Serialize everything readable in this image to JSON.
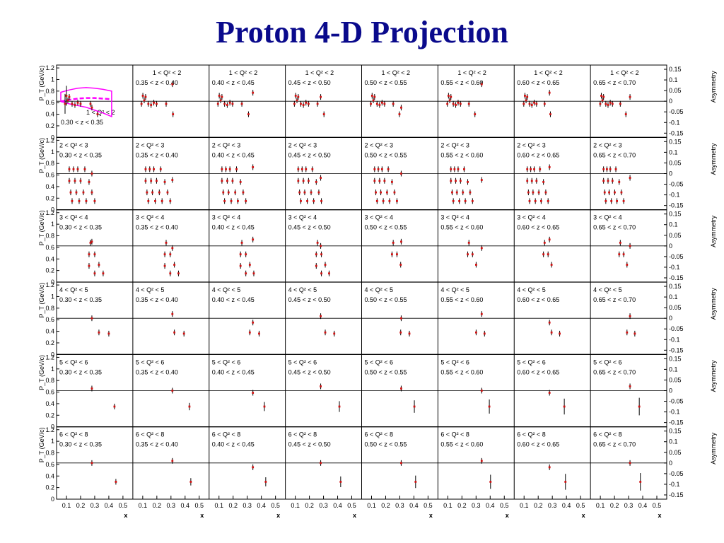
{
  "title": "Proton 4-D Projection",
  "chart_data": {
    "type": "scatter",
    "title": "Proton 4-D Projection",
    "xlabel": "x",
    "ylabel_left": "P_T (GeV/c)",
    "ylabel_right": "Asymmetry",
    "x_ticks": [
      "0.1",
      "0.2",
      "0.3",
      "0.4",
      "0.5"
    ],
    "xlim": [
      0.05,
      0.55
    ],
    "pt_ticks": [
      "0",
      "0.2",
      "0.4",
      "0.6",
      "0.8",
      "1",
      "1.2"
    ],
    "pt_lim": [
      0,
      1.25
    ],
    "asym_ticks": [
      "0.15",
      "0.1",
      "0.05",
      "0",
      "-0.05",
      "-0.1",
      "-0.15"
    ],
    "asym_lim": [
      -0.17,
      0.17
    ],
    "q2_bins": [
      "1 < Q² < 2",
      "2 < Q² < 3",
      "3 < Q² < 4",
      "4 < Q² < 5",
      "5 < Q² < 6",
      "6 < Q² < 8"
    ],
    "z_bins": [
      "0.30 < z < 0.35",
      "0.35 < z < 0.40",
      "0.40 < z < 0.45",
      "0.45 < z < 0.50",
      "0.50 < z < 0.55",
      "0.55 < z < 0.60",
      "0.60 < z < 0.65",
      "0.65 < z < 0.70"
    ],
    "row_points": [
      [
        [
          0.09,
          0.58
        ],
        [
          0.1,
          0.72
        ],
        [
          0.11,
          0.64
        ],
        [
          0.12,
          0.7
        ],
        [
          0.14,
          0.58
        ],
        [
          0.16,
          0.56
        ],
        [
          0.18,
          0.6
        ],
        [
          0.2,
          0.58
        ],
        [
          0.27,
          0.58
        ],
        [
          0.32,
          0.4
        ]
      ],
      [
        [
          0.12,
          0.7
        ],
        [
          0.15,
          0.7
        ],
        [
          0.18,
          0.7
        ],
        [
          0.23,
          0.7
        ],
        [
          0.12,
          0.5
        ],
        [
          0.16,
          0.5
        ],
        [
          0.2,
          0.5
        ],
        [
          0.26,
          0.48
        ],
        [
          0.13,
          0.3
        ],
        [
          0.17,
          0.3
        ],
        [
          0.22,
          0.3
        ],
        [
          0.28,
          0.3
        ],
        [
          0.14,
          0.15
        ],
        [
          0.19,
          0.15
        ],
        [
          0.24,
          0.15
        ],
        [
          0.3,
          0.15
        ]
      ],
      [
        [
          0.27,
          0.68
        ],
        [
          0.26,
          0.48
        ],
        [
          0.3,
          0.48
        ],
        [
          0.33,
          0.3
        ],
        [
          0.26,
          0.28
        ],
        [
          0.3,
          0.15
        ],
        [
          0.36,
          0.15
        ]
      ],
      [
        [
          0.33,
          0.38
        ],
        [
          0.4,
          0.36
        ]
      ],
      [
        [
          0.44,
          0.35
        ]
      ],
      [
        [
          0.45,
          0.3
        ]
      ]
    ],
    "row_asym": [
      [
        -0.03,
        0.08,
        0.04,
        0.02
      ],
      [
        0.0,
        -0.03,
        0.03,
        -0.02
      ],
      [
        0.02,
        -0.01,
        0.03,
        0.0
      ],
      [
        0.0,
        0.02,
        -0.02,
        0.01
      ],
      [
        0.01,
        0.0,
        -0.01,
        0.02
      ],
      [
        0.0,
        0.01,
        -0.02,
        0.0
      ]
    ],
    "band_top": [
      0.78,
      0.82,
      0.85,
      0.86,
      0.85,
      0.83,
      0.8
    ],
    "band_bottom": [
      0.62,
      0.58,
      0.55,
      0.52,
      0.47,
      0.42,
      0.36
    ],
    "curve": [
      0.62,
      0.65,
      0.67,
      0.68,
      0.68,
      0.67,
      0.66
    ],
    "colors": {
      "points": "#d01010",
      "errorbars": "#000000",
      "band": "#ff00ff",
      "title": "#0a0a8c"
    }
  }
}
